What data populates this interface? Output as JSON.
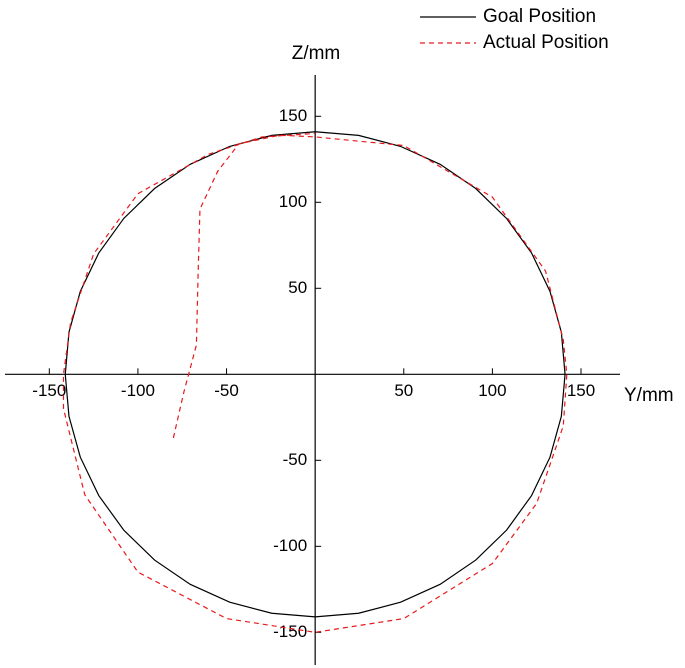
{
  "chart_data": {
    "type": "line",
    "xlabel": "Y/mm",
    "ylabel": "Z/mm",
    "xlim": [
      -175,
      172
    ],
    "ylim": [
      -169,
      174
    ],
    "xticks": [
      -150,
      -100,
      -50,
      50,
      100,
      150
    ],
    "yticks": [
      -150,
      -100,
      -50,
      50,
      100,
      150
    ],
    "legend": "top-right",
    "series": [
      {
        "name": "Goal Position",
        "color": "#000000",
        "dash": "solid",
        "x": [
          141,
          138.9,
          132.5,
          122.1,
          108,
          90.6,
          70.5,
          48.2,
          24.5,
          0,
          -24.5,
          -48.2,
          -70.5,
          -90.6,
          -108,
          -122.1,
          -132.5,
          -138.9,
          -141,
          -138.9,
          -132.5,
          -122.1,
          -108,
          -90.6,
          -70.5,
          -48.2,
          -24.5,
          0,
          24.5,
          48.2,
          70.5,
          90.6,
          108,
          122.1,
          132.5,
          138.9,
          141
        ],
        "values": [
          0,
          24.5,
          48.2,
          70.5,
          90.6,
          108,
          122.1,
          132.5,
          138.9,
          141,
          138.9,
          132.5,
          122.1,
          108,
          90.6,
          70.5,
          48.2,
          24.5,
          0,
          -24.5,
          -48.2,
          -70.5,
          -90.6,
          -108,
          -122.1,
          -132.5,
          -138.9,
          -141,
          -138.9,
          -132.5,
          -122.1,
          -108,
          -90.6,
          -70.5,
          -48.2,
          -24.5,
          0
        ]
      },
      {
        "name": "Actual Position",
        "color": "#e8191b",
        "dash": "dashed",
        "x": [
          -80,
          -74,
          -67,
          -66,
          -65,
          -55,
          -43,
          -20,
          0,
          50,
          100,
          130,
          140,
          142,
          140,
          125,
          100,
          50,
          0,
          -50,
          -100,
          -130,
          -142,
          -142,
          -138,
          -125,
          -100,
          -60,
          -30,
          0
        ],
        "values": [
          -37,
          -10,
          17,
          60,
          96,
          118,
          134,
          139,
          138,
          133,
          103,
          60,
          20,
          0,
          -30,
          -75,
          -110,
          -142,
          -150,
          -142,
          -115,
          -70,
          -20,
          0,
          30,
          70,
          105,
          128,
          138,
          140
        ]
      }
    ]
  }
}
